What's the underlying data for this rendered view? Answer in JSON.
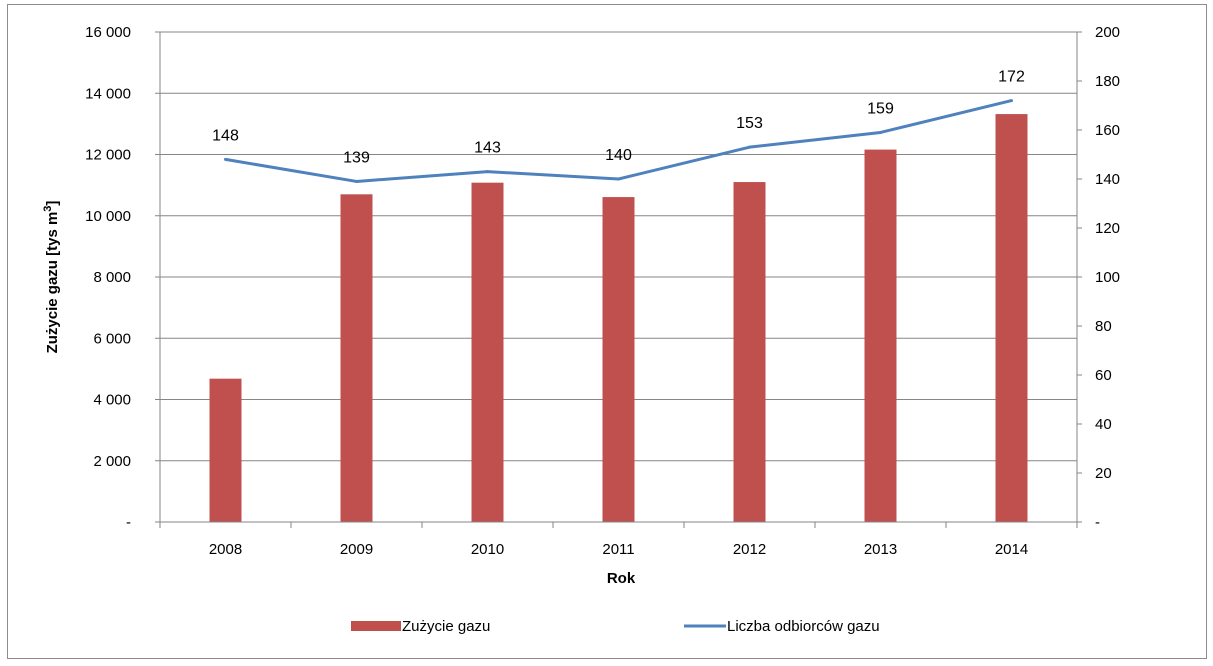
{
  "chart_data": {
    "type": "bar",
    "categories": [
      "2008",
      "2009",
      "2010",
      "2011",
      "2012",
      "2013",
      "2014"
    ],
    "series": [
      {
        "name": "Zużycie gazu",
        "type": "bar",
        "axis": "left",
        "color": "#c0504d",
        "values": [
          4680,
          10700,
          11080,
          10610,
          11100,
          12160,
          13320
        ]
      },
      {
        "name": "Liczba odbiorców gazu",
        "type": "line",
        "axis": "right",
        "color": "#4f81bd",
        "values": [
          148,
          139,
          143,
          140,
          153,
          159,
          172
        ],
        "data_labels": [
          "148",
          "139",
          "143",
          "140",
          "153",
          "159",
          "172"
        ]
      }
    ],
    "xlabel": "Rok",
    "ylabel_prefix": "Zużycie gazu  [tys m",
    "ylabel_superscript": "3",
    "ylabel_suffix": "]",
    "ylim": [
      0,
      16000
    ],
    "y2lim": [
      0,
      200
    ],
    "y_ticks": [
      "-",
      "2 000",
      "4 000",
      "6 000",
      "8 000",
      "10 000",
      "12 000",
      "14 000",
      "16 000"
    ],
    "y2_ticks": [
      "-",
      "20",
      "40",
      "60",
      "80",
      "100",
      "120",
      "140",
      "160",
      "180",
      "200"
    ],
    "grid": true,
    "legend_position": "bottom"
  }
}
